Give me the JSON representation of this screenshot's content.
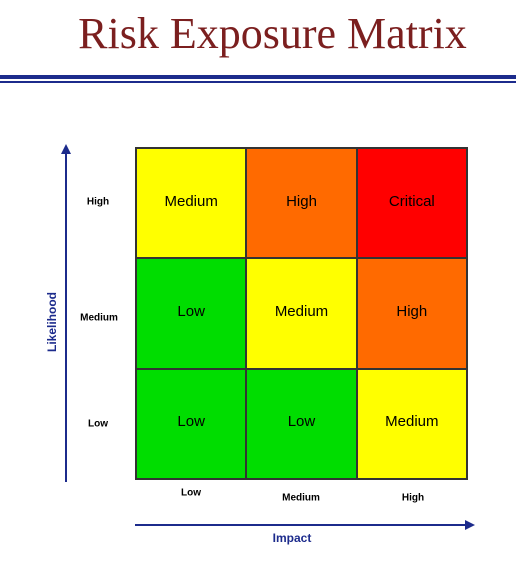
{
  "title": "Risk Exposure Matrix",
  "axes": {
    "y_title": "Likelihood",
    "x_title": "Impact",
    "y_ticks": [
      "High",
      "Medium",
      "Low"
    ],
    "x_ticks": [
      "Low",
      "Medium",
      "High"
    ]
  },
  "matrix": {
    "rows": [
      {
        "likelihood": "High",
        "cells": [
          {
            "label": "Medium",
            "color": "#ffff00"
          },
          {
            "label": "High",
            "color": "#ff6a00"
          },
          {
            "label": "Critical",
            "color": "#ff0000"
          }
        ]
      },
      {
        "likelihood": "Medium",
        "cells": [
          {
            "label": "Low",
            "color": "#00dd00"
          },
          {
            "label": "Medium",
            "color": "#ffff00"
          },
          {
            "label": "High",
            "color": "#ff6a00"
          }
        ]
      },
      {
        "likelihood": "Low",
        "cells": [
          {
            "label": "Low",
            "color": "#00dd00"
          },
          {
            "label": "Low",
            "color": "#00dd00"
          },
          {
            "label": "Medium",
            "color": "#ffff00"
          }
        ]
      }
    ]
  },
  "colors": {
    "title": "#7b1f1f",
    "accent": "#1c2b8c",
    "low": "#00dd00",
    "medium": "#ffff00",
    "high": "#ff6a00",
    "critical": "#ff0000"
  }
}
